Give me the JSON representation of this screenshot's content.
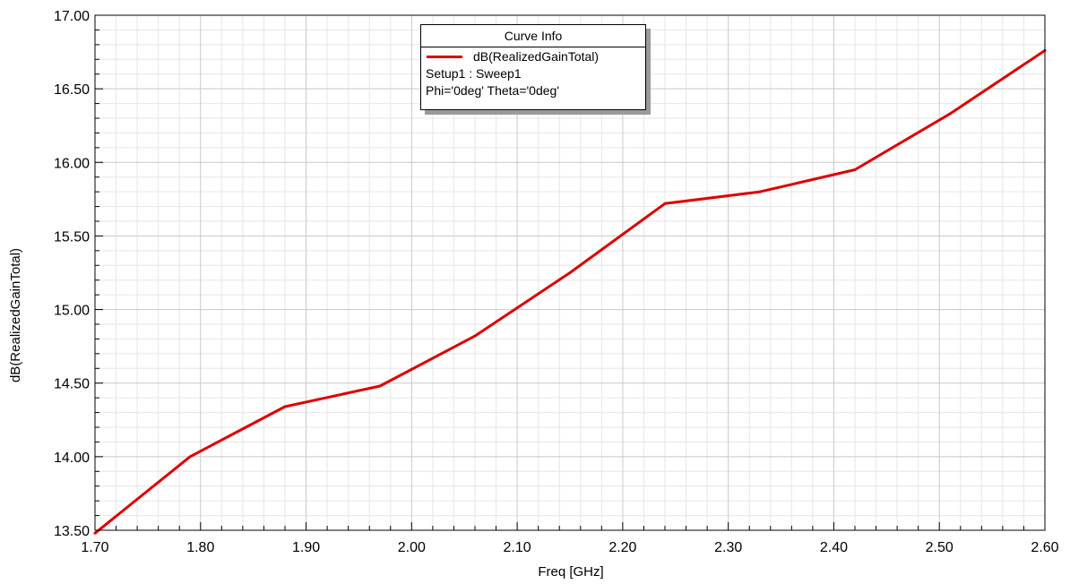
{
  "chart_data": {
    "type": "line",
    "title": "",
    "xlabel": "Freq [GHz]",
    "ylabel": "dB(RealizedGainTotal)",
    "xlim": [
      1.7,
      2.6
    ],
    "ylim": [
      13.5,
      17.0
    ],
    "x_ticks": [
      "1.70",
      "1.80",
      "1.90",
      "2.00",
      "2.10",
      "2.20",
      "2.30",
      "2.40",
      "2.50",
      "2.60"
    ],
    "y_ticks": [
      "13.50",
      "14.00",
      "14.50",
      "15.00",
      "15.50",
      "16.00",
      "16.50",
      "17.00"
    ],
    "grid": true,
    "legend_position": "top-center",
    "series": [
      {
        "name": "dB(RealizedGainTotal)",
        "color": "#e00000",
        "x": [
          1.7,
          1.79,
          1.88,
          1.97,
          2.06,
          2.15,
          2.24,
          2.33,
          2.42,
          2.51,
          2.6
        ],
        "y": [
          13.48,
          14.0,
          14.34,
          14.48,
          14.82,
          15.25,
          15.72,
          15.8,
          15.95,
          16.33,
          16.76
        ]
      }
    ]
  },
  "legend": {
    "title": "Curve Info",
    "entry": "dB(RealizedGainTotal)",
    "line2": "Setup1 : Sweep1",
    "line3": "Phi='0deg' Theta='0deg'"
  }
}
